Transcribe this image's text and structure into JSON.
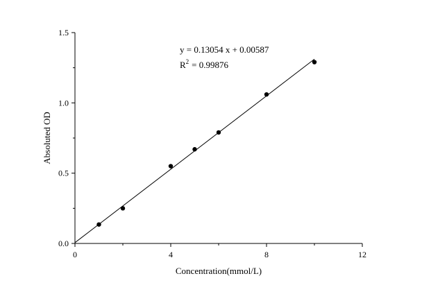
{
  "chart_data": {
    "type": "scatter",
    "title": "",
    "xlabel": "Concentration(mmol/L)",
    "ylabel": "Absoluted OD",
    "xlim": [
      0,
      12
    ],
    "ylim": [
      0,
      1.5
    ],
    "x_ticks": [
      "0",
      "4",
      "8",
      "12"
    ],
    "y_ticks": [
      "0.0",
      "0.5",
      "1.0",
      "1.5"
    ],
    "grid": false,
    "series": [
      {
        "x": [
          1,
          2,
          4,
          5,
          6,
          8,
          10
        ],
        "y": [
          0.135,
          0.25,
          0.55,
          0.67,
          0.79,
          1.06,
          1.29
        ],
        "color": "#000000"
      }
    ],
    "fit": {
      "slope": 0.13054,
      "intercept": 0.00587,
      "x_range": [
        0,
        10
      ],
      "equation": "y = 0.13054 x + 0.00587",
      "r2_label": "R",
      "r2_superscript": "2",
      "r2_value": "= 0.99876"
    }
  }
}
